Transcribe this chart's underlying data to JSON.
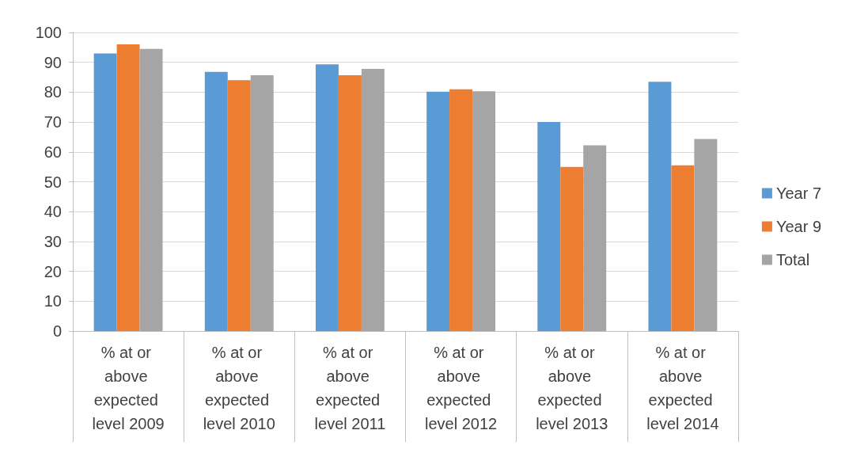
{
  "chart_data": {
    "type": "bar",
    "categories": [
      "% at or above expected level 2009",
      "% at or above expected level 2010",
      "% at or above expected level 2011",
      "% at or above expected level 2012",
      "% at or above expected level 2013",
      "% at or above expected level 2014"
    ],
    "series": [
      {
        "name": "Year 7",
        "color": "#5b9bd5",
        "values": [
          93,
          86.8,
          89.3,
          80.2,
          70,
          83.5
        ]
      },
      {
        "name": "Year 9",
        "color": "#ed7d31",
        "values": [
          96,
          84,
          85.7,
          81,
          55,
          55.5
        ]
      },
      {
        "name": "Total",
        "color": "#a5a5a5",
        "values": [
          94.5,
          85.7,
          87.8,
          80.3,
          62.2,
          64.3
        ]
      }
    ],
    "ylim": [
      0,
      100
    ],
    "yticks": [
      0,
      10,
      20,
      30,
      40,
      50,
      60,
      70,
      80,
      90,
      100
    ],
    "grid": "y",
    "legend": "right"
  }
}
